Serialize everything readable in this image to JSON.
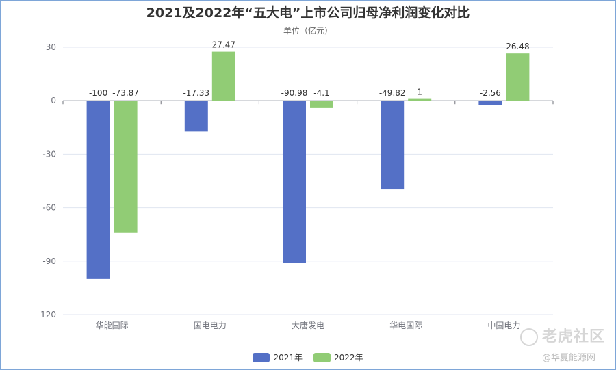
{
  "title": "2021及2022年“五大电”上市公司归母净利润变化对比",
  "subtitle": "单位（亿元）",
  "colors": {
    "s2021": "#5470c6",
    "s2022": "#91cc75"
  },
  "chart_data": {
    "type": "bar",
    "title": "2021及2022年“五大电”上市公司归母净利润变化对比",
    "subtitle": "单位（亿元）",
    "categories": [
      "华能国际",
      "国电电力",
      "大唐发电",
      "华电国际",
      "中国电力"
    ],
    "series": [
      {
        "name": "2021年",
        "values": [
          -100,
          -17.33,
          -90.98,
          -49.82,
          -2.56
        ]
      },
      {
        "name": "2022年",
        "values": [
          -73.87,
          27.47,
          -4.1,
          1,
          26.48
        ]
      }
    ],
    "ylim": [
      -120,
      30
    ],
    "yticks": [
      30,
      0,
      -30,
      -60,
      -90,
      -120
    ],
    "grid": true,
    "legend": "bottom"
  },
  "legend": {
    "items": [
      "2021年",
      "2022年"
    ]
  },
  "watermark": {
    "brand": "老虎社区",
    "source": "@华夏能源网"
  }
}
